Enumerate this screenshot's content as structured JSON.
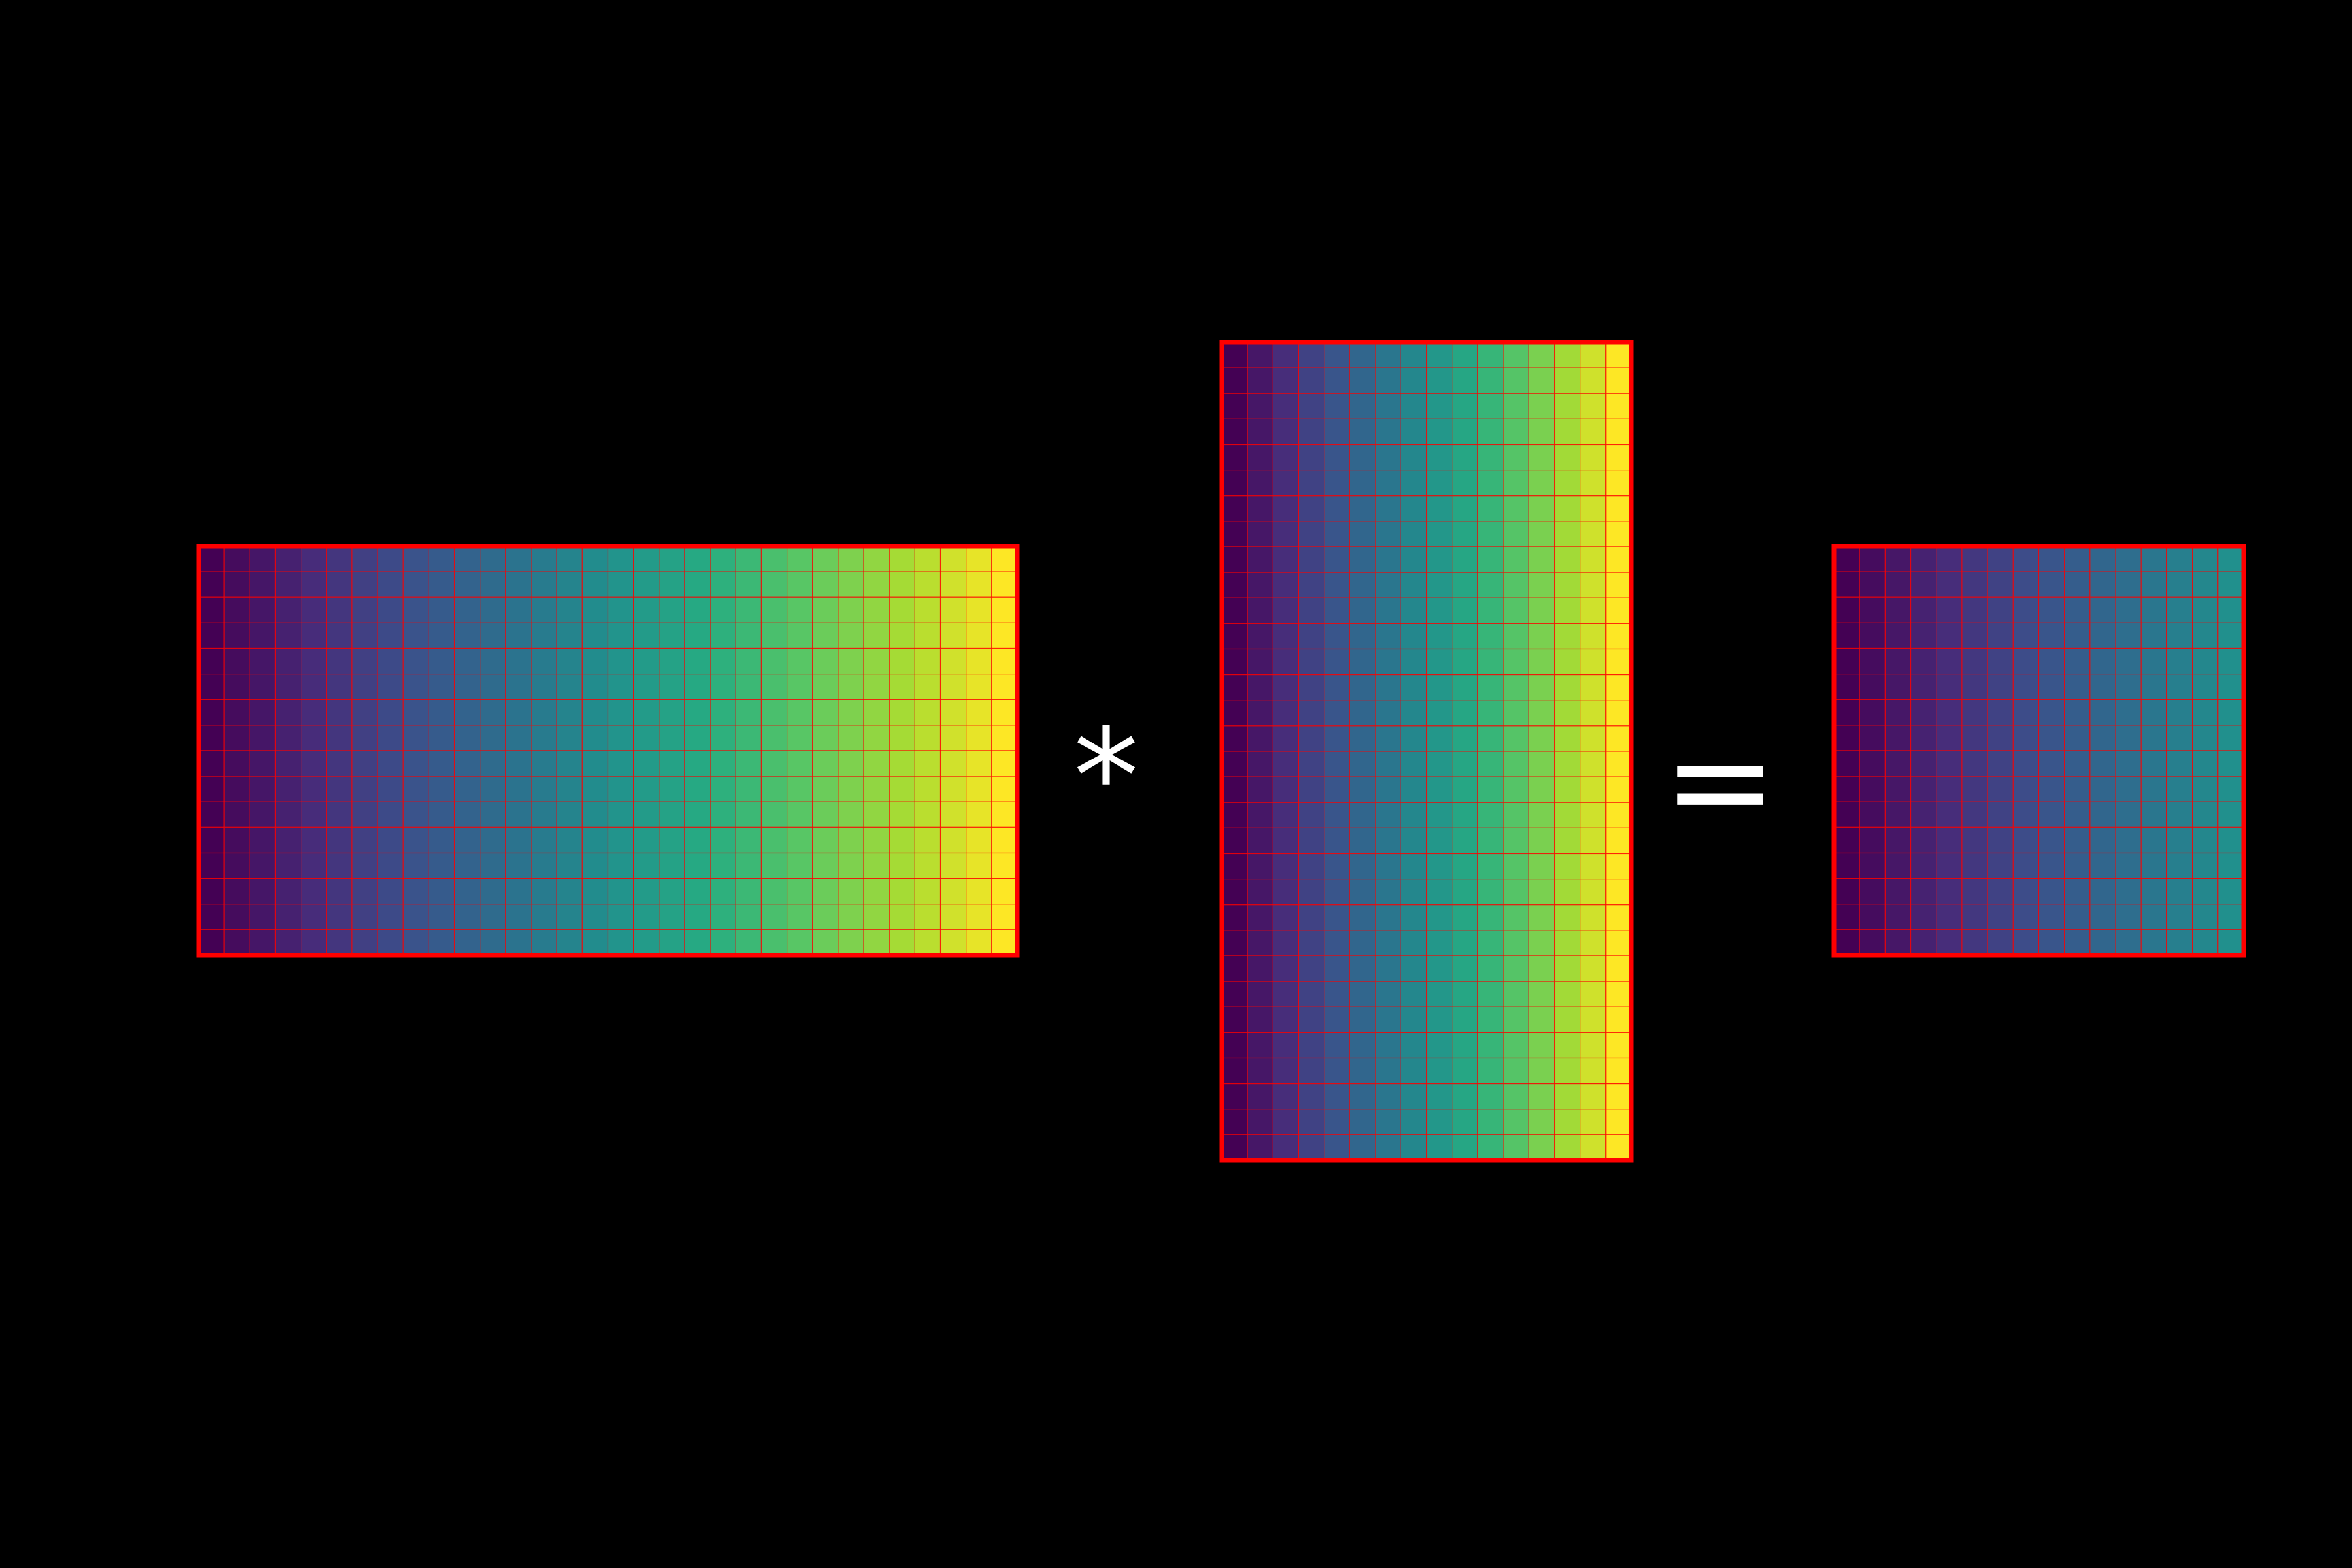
{
  "diagram": {
    "background": "#000000",
    "cell_border_color": "#ff0000",
    "frame_color": "#ff0000",
    "colormap": "viridis",
    "matrices": [
      {
        "name": "matrix-a",
        "rows": 16,
        "cols": 32,
        "color_span": [
          0.0,
          1.0
        ]
      },
      {
        "name": "matrix-b",
        "rows": 32,
        "cols": 16,
        "color_span": [
          0.0,
          1.0
        ]
      },
      {
        "name": "matrix-result",
        "rows": 16,
        "cols": 16,
        "color_span": [
          0.0,
          0.5
        ]
      }
    ],
    "operators": {
      "multiply": "*",
      "equals": "="
    }
  }
}
